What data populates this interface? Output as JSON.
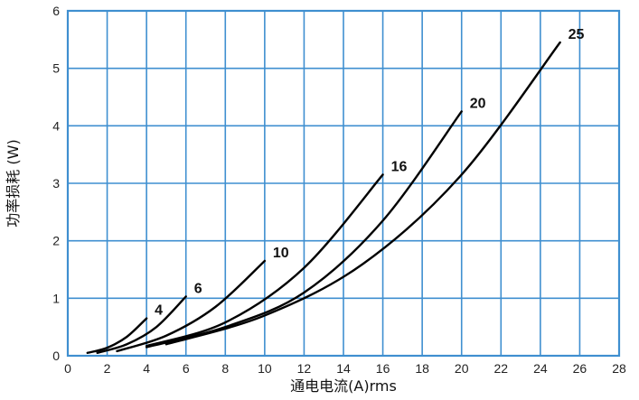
{
  "chart_data": {
    "type": "line",
    "title": "",
    "xlabel": "通电电流(A)rms",
    "ylabel": "功率损耗 (W)",
    "xlim": [
      0,
      28
    ],
    "ylim": [
      0,
      6
    ],
    "x_ticks": [
      0,
      2,
      4,
      6,
      8,
      10,
      12,
      14,
      16,
      18,
      20,
      22,
      24,
      26,
      28
    ],
    "y_ticks": [
      0,
      1,
      2,
      3,
      4,
      5,
      6
    ],
    "grid": true,
    "legend": "none",
    "colors": {
      "grid": "#3f8fd0",
      "line": "#000000",
      "text": "#222222"
    },
    "series": [
      {
        "name": "4",
        "points": [
          [
            1.0,
            0.05
          ],
          [
            2.0,
            0.14
          ],
          [
            3.0,
            0.33
          ],
          [
            4.0,
            0.65
          ]
        ]
      },
      {
        "name": "6",
        "points": [
          [
            1.5,
            0.05
          ],
          [
            3.0,
            0.2
          ],
          [
            4.5,
            0.5
          ],
          [
            6.0,
            1.03
          ]
        ]
      },
      {
        "name": "10",
        "points": [
          [
            2.5,
            0.08
          ],
          [
            5.0,
            0.35
          ],
          [
            7.5,
            0.85
          ],
          [
            10.0,
            1.65
          ]
        ]
      },
      {
        "name": "16",
        "points": [
          [
            4.0,
            0.17
          ],
          [
            8.0,
            0.58
          ],
          [
            12.0,
            1.53
          ],
          [
            16.0,
            3.15
          ]
        ]
      },
      {
        "name": "20",
        "points": [
          [
            4.0,
            0.15
          ],
          [
            8.0,
            0.5
          ],
          [
            12.0,
            1.1
          ],
          [
            16.0,
            2.35
          ],
          [
            20.0,
            4.25
          ]
        ]
      },
      {
        "name": "25",
        "points": [
          [
            5.0,
            0.2
          ],
          [
            10.0,
            0.7
          ],
          [
            15.0,
            1.6
          ],
          [
            20.0,
            3.15
          ],
          [
            25.0,
            5.45
          ]
        ]
      }
    ]
  }
}
